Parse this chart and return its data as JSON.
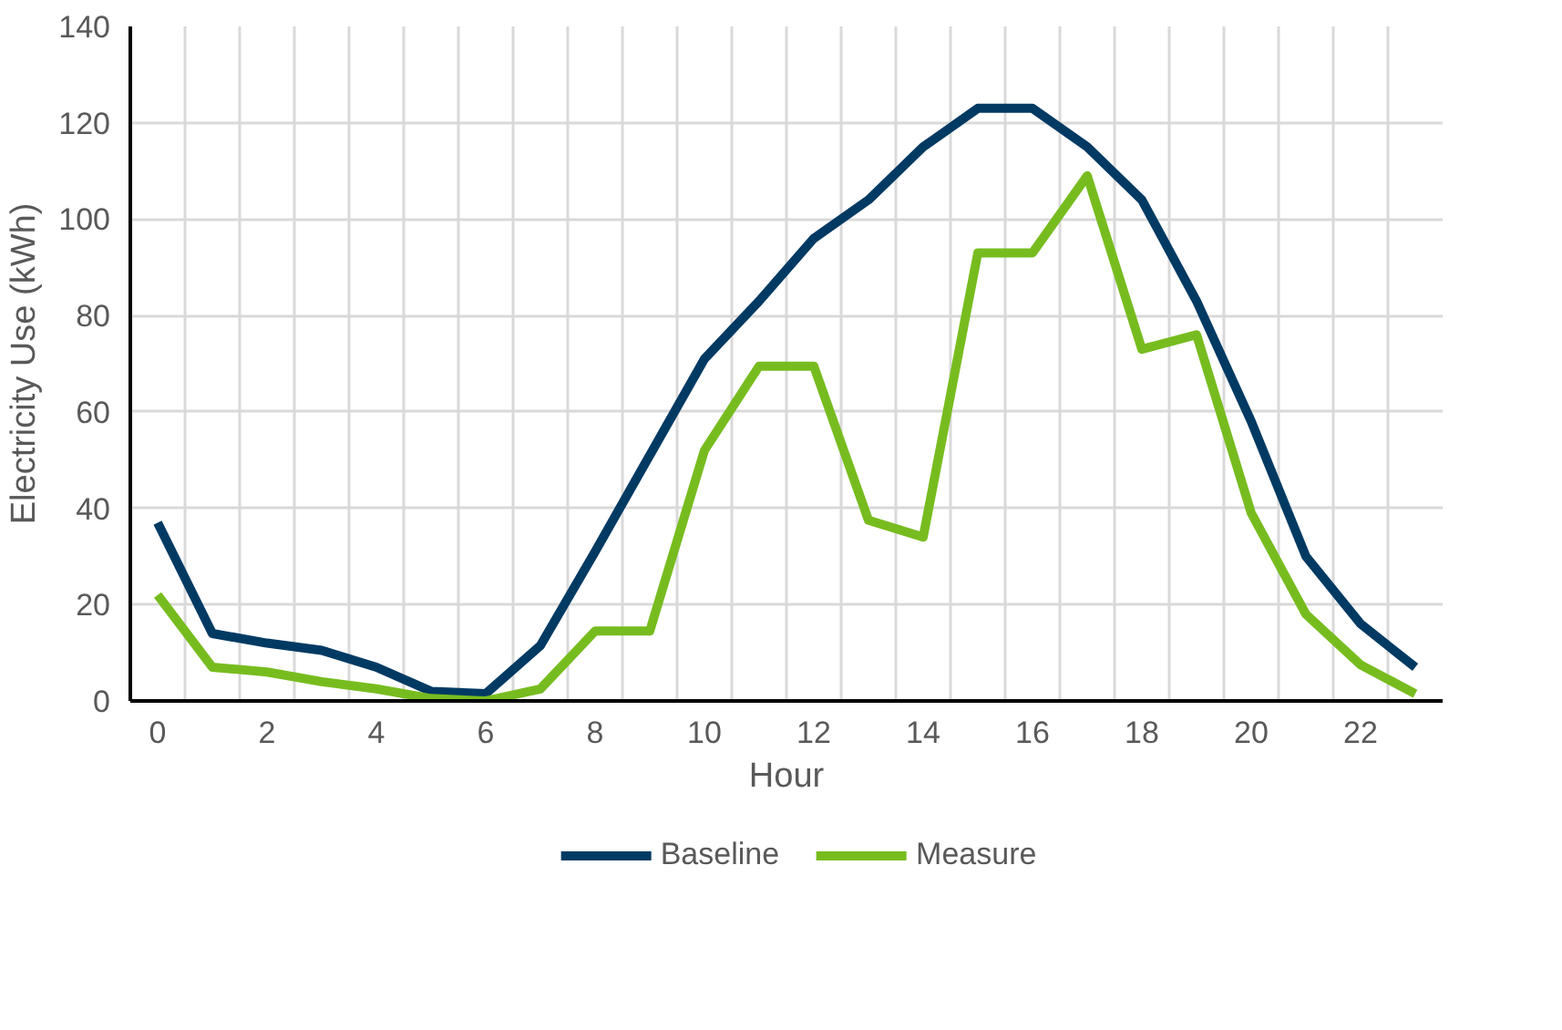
{
  "chart_data": {
    "type": "line",
    "xlabel": "Hour",
    "ylabel": "Electricity Use (kWh)",
    "categories": [
      "0",
      null,
      "2",
      null,
      "4",
      null,
      "6",
      null,
      "8",
      null,
      "10",
      null,
      "12",
      null,
      "14",
      null,
      "16",
      null,
      "18",
      null,
      "20",
      null,
      "22",
      null
    ],
    "series": [
      {
        "name": "Baseline",
        "color": "#003a63",
        "values": [
          37,
          14,
          12,
          10.5,
          7,
          2,
          1.5,
          11.5,
          31,
          51,
          71,
          83,
          96,
          104,
          115,
          123,
          123,
          115,
          104,
          83,
          58,
          30,
          16,
          7
        ]
      },
      {
        "name": "Measure",
        "color": "#77bc1f",
        "values": [
          22,
          7,
          6,
          4,
          2.5,
          0.5,
          0,
          2.5,
          14.5,
          14.5,
          52,
          69.5,
          69.5,
          37.5,
          34,
          93,
          93,
          109,
          73,
          76,
          39,
          18,
          7.5,
          1.5
        ]
      }
    ],
    "ylim": [
      0,
      140
    ],
    "yticks": [
      0,
      20,
      40,
      60,
      80,
      100,
      120,
      140
    ],
    "grid": true,
    "legend": "bottom",
    "line_style": "solid",
    "marker": "none"
  }
}
